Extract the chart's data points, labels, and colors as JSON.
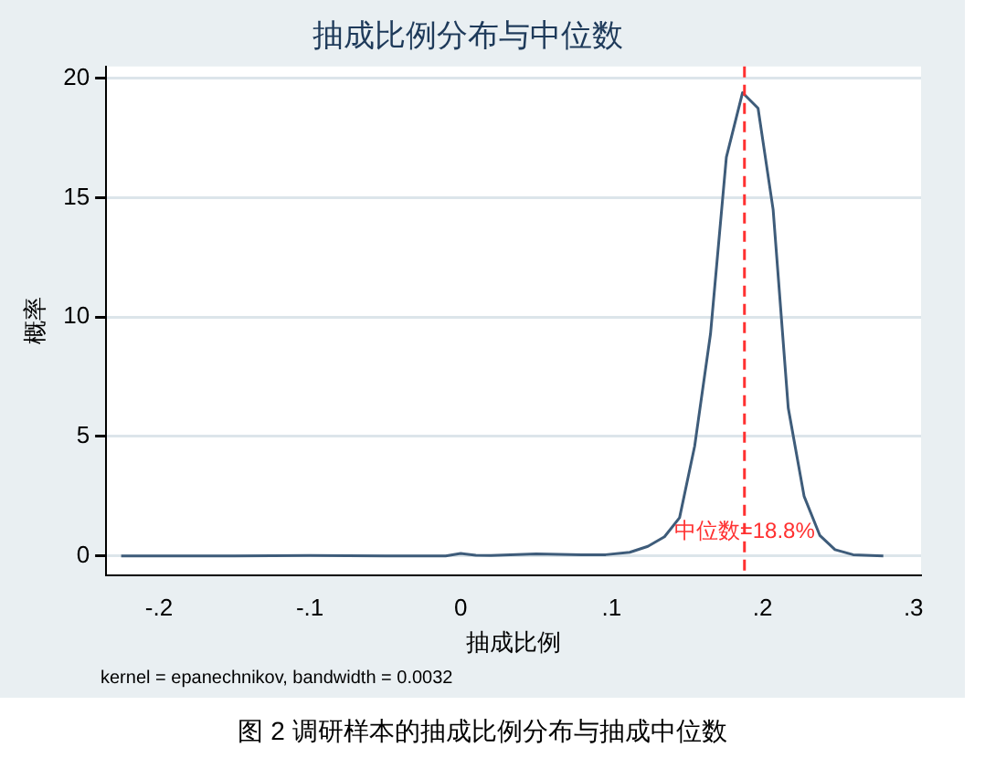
{
  "chart_data": {
    "type": "line",
    "title": "抽成比例分布与中位数",
    "xlabel": "抽成比例",
    "ylabel": "概率",
    "annotations": [
      "kernel = epanechnikov, bandwidth = 0.0032",
      "图 2 调研样本的抽成比例分布与抽成中位数"
    ],
    "series": [
      {
        "color": "#3e5c7a",
        "x": [
          -0.225,
          -0.15,
          -0.1,
          -0.05,
          -0.01,
          0,
          0.01,
          0.02,
          0.05,
          0.08,
          0.096,
          0.112,
          0.124,
          0.135,
          0.145,
          0.155,
          0.1655,
          0.176,
          0.1867,
          0.197,
          0.207,
          0.217,
          0.2275,
          0.238,
          0.248,
          0.26,
          0.28
        ],
        "values": [
          0,
          0,
          0.02,
          0,
          0,
          0.1,
          0.03,
          0.02,
          0.08,
          0.05,
          0.05,
          0.15,
          0.4,
          0.8,
          1.6,
          4.6,
          9.3,
          16.7,
          19.4,
          18.75,
          14.5,
          6.2,
          2.5,
          0.85,
          0.26,
          0.05,
          0
        ]
      }
    ],
    "xlim": [
      -0.235,
      0.305
    ],
    "xticks": [
      {
        "value": -0.2,
        "label": "-.2"
      },
      {
        "value": -0.1,
        "label": "-.1"
      },
      0,
      {
        "value": 0.1,
        "label": ".1"
      },
      {
        "value": 0.2,
        "label": ".2"
      },
      {
        "value": 0.3,
        "label": ".3"
      }
    ],
    "ylim": [
      -0.8,
      20.5
    ],
    "yticks": [
      0,
      5,
      10,
      15,
      20
    ],
    "ref_lines": [
      {
        "axis": "x",
        "value": 0.188,
        "label": "中位数=18.8%",
        "color": "#ff3030",
        "line_style": "dashed"
      }
    ],
    "grid": "y",
    "legend": false,
    "marker": "none",
    "line_style": "solid"
  }
}
